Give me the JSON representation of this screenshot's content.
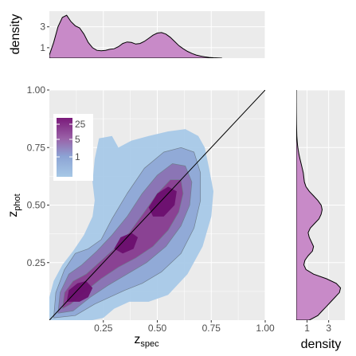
{
  "colors": {
    "panel_bg": "#ebebeb",
    "grid_major": "#ffffff",
    "density_fill": "#c88ac8",
    "density_line": "#000000",
    "fill_low": "#a6c8e6",
    "fill_mid": "#8a7fba",
    "fill_high": "#7a1a7a",
    "contour_line": "#6f7f8f",
    "identity_line": "#000000"
  },
  "chart_data": [
    {
      "type": "density2d",
      "panel": "main",
      "xlabel": "z",
      "xlabel_sub": "spec",
      "ylabel": "z",
      "ylabel_sub": "phot",
      "xlim": [
        0.0,
        1.0
      ],
      "ylim": [
        0.0,
        1.0
      ],
      "x_ticks": [
        "0.25",
        "0.50",
        "0.75",
        "1.00"
      ],
      "y_ticks": [
        "0.25",
        "0.50",
        "0.75",
        "1.00"
      ],
      "grid": true,
      "identity_line": true,
      "legend": {
        "placement": "top-left",
        "labels": [
          "25",
          "5",
          "1"
        ]
      },
      "density_levels": [
        {
          "level": 1,
          "path": [
            [
              0.0,
              0.0
            ],
            [
              0.0,
              0.1
            ],
            [
              0.02,
              0.17
            ],
            [
              0.06,
              0.24
            ],
            [
              0.11,
              0.3
            ],
            [
              0.16,
              0.37
            ],
            [
              0.2,
              0.45
            ],
            [
              0.21,
              0.52
            ],
            [
              0.2,
              0.6
            ],
            [
              0.21,
              0.7
            ],
            [
              0.23,
              0.79
            ],
            [
              0.29,
              0.8
            ],
            [
              0.32,
              0.75
            ],
            [
              0.38,
              0.78
            ],
            [
              0.46,
              0.8
            ],
            [
              0.55,
              0.82
            ],
            [
              0.63,
              0.83
            ],
            [
              0.69,
              0.8
            ],
            [
              0.72,
              0.75
            ],
            [
              0.74,
              0.66
            ],
            [
              0.76,
              0.56
            ],
            [
              0.75,
              0.45
            ],
            [
              0.71,
              0.32
            ],
            [
              0.64,
              0.2
            ],
            [
              0.55,
              0.11
            ],
            [
              0.46,
              0.08
            ],
            [
              0.37,
              0.08
            ],
            [
              0.3,
              0.05
            ],
            [
              0.25,
              0.01
            ],
            [
              0.2,
              0.0
            ]
          ]
        },
        {
          "level": 3,
          "path": [
            [
              0.02,
              0.01
            ],
            [
              0.03,
              0.12
            ],
            [
              0.07,
              0.22
            ],
            [
              0.12,
              0.29
            ],
            [
              0.18,
              0.31
            ],
            [
              0.24,
              0.35
            ],
            [
              0.29,
              0.44
            ],
            [
              0.36,
              0.55
            ],
            [
              0.44,
              0.66
            ],
            [
              0.53,
              0.73
            ],
            [
              0.61,
              0.75
            ],
            [
              0.67,
              0.73
            ],
            [
              0.7,
              0.64
            ],
            [
              0.7,
              0.52
            ],
            [
              0.67,
              0.4
            ],
            [
              0.61,
              0.29
            ],
            [
              0.52,
              0.21
            ],
            [
              0.43,
              0.16
            ],
            [
              0.35,
              0.13
            ],
            [
              0.28,
              0.1
            ],
            [
              0.21,
              0.07
            ],
            [
              0.12,
              0.02
            ]
          ]
        },
        {
          "level": 6,
          "path": [
            [
              0.04,
              0.03
            ],
            [
              0.05,
              0.12
            ],
            [
              0.09,
              0.2
            ],
            [
              0.15,
              0.24
            ],
            [
              0.22,
              0.3
            ],
            [
              0.29,
              0.37
            ],
            [
              0.36,
              0.45
            ],
            [
              0.43,
              0.55
            ],
            [
              0.5,
              0.63
            ],
            [
              0.57,
              0.68
            ],
            [
              0.63,
              0.67
            ],
            [
              0.66,
              0.6
            ],
            [
              0.65,
              0.5
            ],
            [
              0.61,
              0.41
            ],
            [
              0.54,
              0.32
            ],
            [
              0.45,
              0.25
            ],
            [
              0.36,
              0.2
            ],
            [
              0.27,
              0.15
            ],
            [
              0.19,
              0.1
            ],
            [
              0.11,
              0.04
            ]
          ]
        },
        {
          "level": 12,
          "path": [
            [
              0.06,
              0.05
            ],
            [
              0.07,
              0.12
            ],
            [
              0.11,
              0.17
            ],
            [
              0.17,
              0.2
            ],
            [
              0.23,
              0.25
            ],
            [
              0.3,
              0.31
            ],
            [
              0.37,
              0.38
            ],
            [
              0.44,
              0.47
            ],
            [
              0.5,
              0.55
            ],
            [
              0.56,
              0.61
            ],
            [
              0.61,
              0.61
            ],
            [
              0.62,
              0.55
            ],
            [
              0.6,
              0.47
            ],
            [
              0.55,
              0.39
            ],
            [
              0.48,
              0.32
            ],
            [
              0.4,
              0.27
            ],
            [
              0.32,
              0.23
            ],
            [
              0.24,
              0.18
            ],
            [
              0.16,
              0.12
            ],
            [
              0.1,
              0.07
            ]
          ]
        },
        {
          "level": 20,
          "path": [
            [
              0.08,
              0.08
            ],
            [
              0.09,
              0.13
            ],
            [
              0.13,
              0.16
            ],
            [
              0.17,
              0.17
            ],
            [
              0.2,
              0.14
            ],
            [
              0.18,
              0.1
            ],
            [
              0.14,
              0.08
            ]
          ]
        },
        {
          "level": 20,
          "path": [
            [
              0.3,
              0.31
            ],
            [
              0.33,
              0.36
            ],
            [
              0.38,
              0.38
            ],
            [
              0.41,
              0.36
            ],
            [
              0.39,
              0.31
            ],
            [
              0.34,
              0.29
            ]
          ]
        },
        {
          "level": 20,
          "path": [
            [
              0.46,
              0.49
            ],
            [
              0.5,
              0.55
            ],
            [
              0.55,
              0.58
            ],
            [
              0.59,
              0.56
            ],
            [
              0.58,
              0.5
            ],
            [
              0.53,
              0.45
            ],
            [
              0.48,
              0.45
            ]
          ]
        }
      ]
    },
    {
      "type": "area",
      "panel": "top-marginal",
      "ylabel": "density",
      "xlim": [
        0.0,
        1.0
      ],
      "ylim": [
        0.0,
        4.5
      ],
      "y_ticks": [
        "1",
        "3"
      ],
      "y_tick_values": [
        1,
        3
      ],
      "x": [
        0.0,
        0.02,
        0.04,
        0.06,
        0.08,
        0.1,
        0.12,
        0.14,
        0.16,
        0.18,
        0.2,
        0.22,
        0.24,
        0.26,
        0.28,
        0.3,
        0.32,
        0.34,
        0.36,
        0.38,
        0.4,
        0.42,
        0.44,
        0.46,
        0.48,
        0.5,
        0.52,
        0.54,
        0.56,
        0.58,
        0.6,
        0.62,
        0.64,
        0.66,
        0.68,
        0.7,
        0.72,
        0.74,
        0.76,
        0.78,
        0.8
      ],
      "y": [
        0.3,
        1.5,
        3.0,
        3.9,
        4.1,
        3.5,
        3.1,
        2.9,
        2.3,
        1.5,
        1.0,
        0.75,
        0.7,
        0.75,
        0.85,
        0.9,
        1.1,
        1.4,
        1.55,
        1.5,
        1.35,
        1.4,
        1.6,
        1.9,
        2.2,
        2.4,
        2.45,
        2.3,
        2.0,
        1.6,
        1.2,
        0.9,
        0.65,
        0.45,
        0.3,
        0.2,
        0.12,
        0.07,
        0.04,
        0.02,
        0.0
      ]
    },
    {
      "type": "area",
      "panel": "right-marginal",
      "xlabel": "density",
      "ylim": [
        0.0,
        1.0
      ],
      "xlim": [
        0.0,
        4.5
      ],
      "x_ticks": [
        "1",
        "3"
      ],
      "x_tick_values": [
        1,
        3
      ],
      "y": [
        0.0,
        0.02,
        0.04,
        0.06,
        0.08,
        0.1,
        0.12,
        0.14,
        0.16,
        0.18,
        0.2,
        0.22,
        0.24,
        0.26,
        0.28,
        0.3,
        0.32,
        0.34,
        0.36,
        0.38,
        0.4,
        0.42,
        0.44,
        0.46,
        0.48,
        0.5,
        0.52,
        0.54,
        0.56,
        0.58,
        0.6,
        0.62,
        0.64,
        0.66,
        0.68,
        0.7,
        0.72,
        0.74,
        0.76,
        0.78,
        0.8,
        0.85,
        0.9,
        0.95,
        1.0
      ],
      "x": [
        1.2,
        2.0,
        2.4,
        2.8,
        3.2,
        3.6,
        4.0,
        4.1,
        3.7,
        2.8,
        1.6,
        0.9,
        0.7,
        0.8,
        1.1,
        1.5,
        1.6,
        1.4,
        1.2,
        1.1,
        1.3,
        1.7,
        2.1,
        2.3,
        2.4,
        2.3,
        2.0,
        1.6,
        1.2,
        0.9,
        0.75,
        0.7,
        0.65,
        0.55,
        0.45,
        0.35,
        0.25,
        0.18,
        0.12,
        0.08,
        0.05,
        0.02,
        0.01,
        0.0,
        0.0
      ]
    }
  ]
}
